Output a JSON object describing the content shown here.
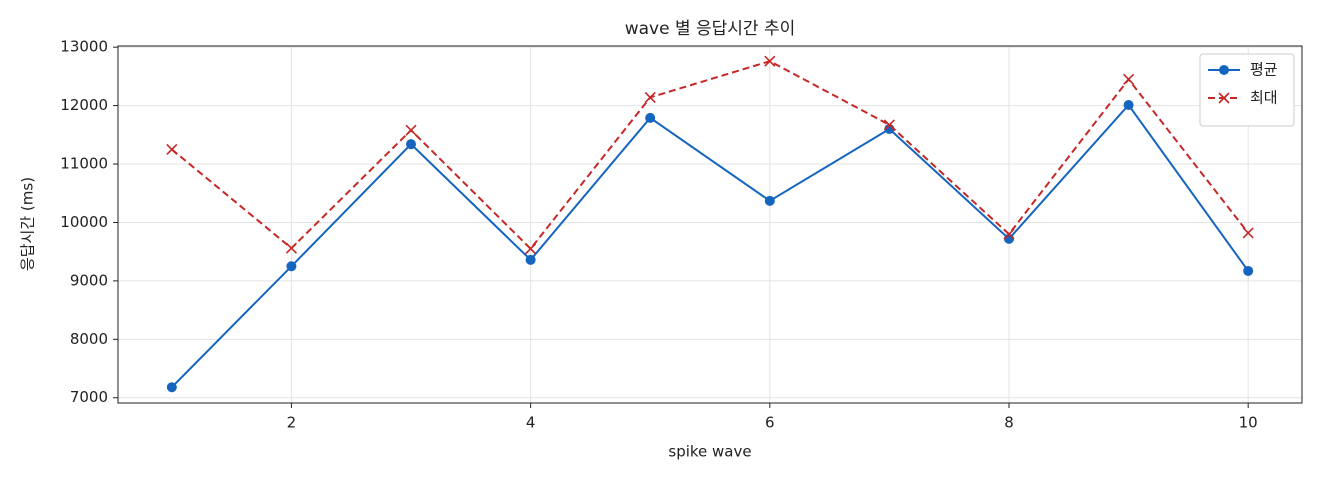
{
  "chart_data": {
    "type": "line",
    "title": "wave 별 응답시간 추이",
    "x_label": "spike wave",
    "y_label": "응답시간 (ms)",
    "x": [
      1,
      2,
      3,
      4,
      5,
      6,
      7,
      8,
      9,
      10
    ],
    "series": [
      {
        "name": "평균",
        "color": "#1565c0",
        "marker": "circle",
        "linestyle": "solid",
        "values": [
          7180,
          9250,
          11340,
          9360,
          11790,
          10370,
          11600,
          9720,
          12010,
          9170
        ]
      },
      {
        "name": "최대",
        "color": "#c62828",
        "marker": "x",
        "linestyle": "dashed",
        "values": [
          11250,
          9560,
          11580,
          9550,
          12140,
          12760,
          11670,
          9800,
          12450,
          9820
        ]
      }
    ],
    "xlim": [
      0.55,
      10.45
    ],
    "ylim": [
      6910,
      13020
    ],
    "xticks": [
      2,
      4,
      6,
      8,
      10
    ],
    "yticks": [
      7000,
      8000,
      9000,
      10000,
      11000,
      12000,
      13000
    ],
    "grid": true,
    "legend_position": "upper right"
  }
}
